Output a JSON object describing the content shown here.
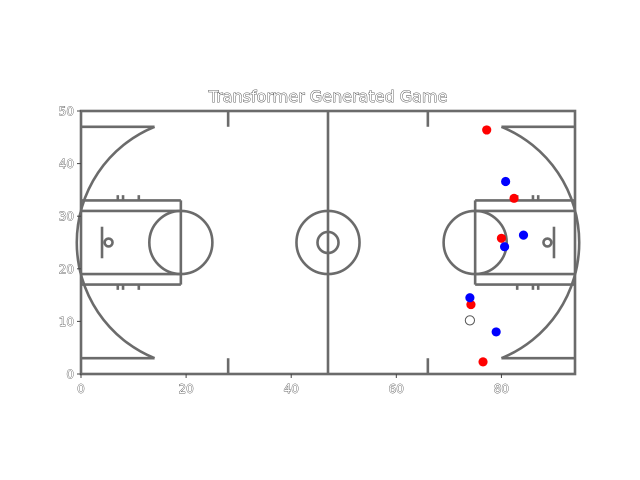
{
  "chart_data": {
    "type": "scatter",
    "title": "Transformer Generated Game",
    "xlabel": "",
    "ylabel": "",
    "xlim": [
      0,
      94
    ],
    "ylim": [
      0,
      50
    ],
    "xticks": [
      0,
      20,
      40,
      60,
      80
    ],
    "yticks": [
      0,
      10,
      20,
      30,
      40,
      50
    ],
    "grid": false,
    "background": "basketball court diagram",
    "colors": {
      "court_lines": "#6b6b6b",
      "team_red": "#ff0000",
      "team_blue": "#0000ff",
      "ball_edge": "#555555"
    },
    "series": [
      {
        "color": "#ff0000",
        "points": [
          {
            "x": 77.2,
            "y": 46.4
          },
          {
            "x": 82.4,
            "y": 33.4
          },
          {
            "x": 80.0,
            "y": 25.8
          },
          {
            "x": 74.2,
            "y": 13.2
          },
          {
            "x": 76.5,
            "y": 2.3
          }
        ]
      },
      {
        "color": "#0000ff",
        "points": [
          {
            "x": 80.8,
            "y": 36.6
          },
          {
            "x": 84.2,
            "y": 26.4
          },
          {
            "x": 80.6,
            "y": 24.2
          },
          {
            "x": 74.0,
            "y": 14.5
          },
          {
            "x": 79.0,
            "y": 8.0
          }
        ]
      },
      {
        "color": "#ffffff",
        "points": [
          {
            "x": 74.0,
            "y": 10.2
          }
        ]
      }
    ]
  }
}
